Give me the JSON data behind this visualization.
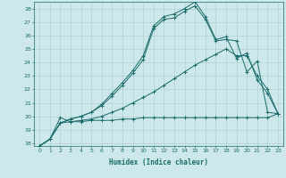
{
  "xlabel": "Humidex (Indice chaleur)",
  "xlim": [
    -0.5,
    23.5
  ],
  "ylim": [
    17.8,
    28.5
  ],
  "xticks": [
    0,
    1,
    2,
    3,
    4,
    5,
    6,
    7,
    8,
    9,
    10,
    11,
    12,
    13,
    14,
    15,
    16,
    17,
    18,
    19,
    20,
    21,
    22,
    23
  ],
  "yticks": [
    18,
    19,
    20,
    21,
    22,
    23,
    24,
    25,
    26,
    27,
    28
  ],
  "background_color": "#cde8ea",
  "grid_color": "#aacdd0",
  "line_color": "#1a6b6b",
  "series": [
    {
      "x": [
        0,
        1,
        2,
        3,
        4,
        5,
        6,
        7,
        8,
        9,
        10,
        11,
        12,
        13,
        14,
        15,
        16,
        17,
        18,
        19,
        20,
        21,
        22,
        23
      ],
      "y": [
        17.8,
        18.3,
        19.9,
        19.6,
        19.6,
        19.7,
        19.7,
        19.7,
        19.8,
        19.8,
        19.9,
        19.9,
        19.9,
        19.9,
        19.9,
        19.9,
        19.9,
        19.9,
        19.9,
        19.9,
        19.9,
        19.9,
        19.9,
        20.2
      ]
    },
    {
      "x": [
        0,
        1,
        2,
        3,
        4,
        5,
        6,
        7,
        8,
        9,
        10,
        11,
        12,
        13,
        14,
        15,
        16,
        17,
        18,
        19,
        20,
        21,
        22,
        23
      ],
      "y": [
        17.8,
        18.3,
        19.5,
        19.6,
        19.7,
        19.8,
        20.0,
        20.3,
        20.6,
        21.0,
        21.4,
        21.8,
        22.3,
        22.8,
        23.3,
        23.8,
        24.2,
        24.6,
        25.0,
        24.5,
        24.5,
        23.0,
        22.0,
        20.2
      ]
    },
    {
      "x": [
        0,
        1,
        2,
        3,
        4,
        5,
        6,
        7,
        8,
        9,
        10,
        11,
        12,
        13,
        14,
        15,
        16,
        17,
        18,
        19,
        20,
        21,
        22,
        23
      ],
      "y": [
        17.8,
        18.3,
        19.5,
        19.8,
        20.0,
        20.3,
        20.8,
        21.5,
        22.3,
        23.2,
        24.2,
        26.5,
        27.2,
        27.3,
        27.8,
        28.2,
        27.2,
        25.6,
        25.7,
        25.6,
        23.3,
        24.1,
        20.3,
        20.2
      ]
    },
    {
      "x": [
        0,
        1,
        2,
        3,
        4,
        5,
        6,
        7,
        8,
        9,
        10,
        11,
        12,
        13,
        14,
        15,
        16,
        17,
        18,
        19,
        20,
        21,
        22,
        23
      ],
      "y": [
        17.8,
        18.3,
        19.5,
        19.8,
        20.0,
        20.3,
        20.9,
        21.7,
        22.5,
        23.4,
        24.5,
        26.7,
        27.4,
        27.6,
        28.0,
        28.5,
        27.4,
        25.7,
        25.9,
        24.3,
        24.7,
        22.7,
        21.7,
        20.2
      ]
    }
  ]
}
